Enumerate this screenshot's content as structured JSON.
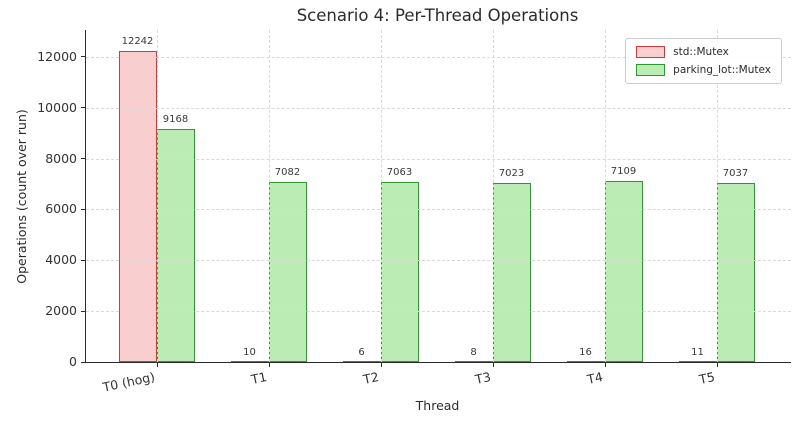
{
  "chart_data": {
    "type": "bar",
    "title": "Scenario 4: Per-Thread Operations",
    "xlabel": "Thread",
    "ylabel": "Operations (count over run)",
    "categories": [
      "T0 (hog)",
      "T1",
      "T2",
      "T3",
      "T4",
      "T5"
    ],
    "series": [
      {
        "name": "std::Mutex",
        "values": [
          12242,
          10,
          6,
          8,
          16,
          11
        ],
        "fill": "#f8cece",
        "edge": "#cc3c3c"
      },
      {
        "name": "parking_lot::Mutex",
        "values": [
          9168,
          7082,
          7063,
          7023,
          7109,
          7037
        ],
        "fill": "#baecb4",
        "edge": "#2e962e"
      }
    ],
    "yticks": [
      0,
      2000,
      4000,
      6000,
      8000,
      10000,
      12000
    ],
    "ylim": [
      0,
      13060
    ],
    "grid": true,
    "bar_value_labels": true,
    "legend_position": "upper right",
    "colors": {
      "grid": "#d9d9d9",
      "axis": "#2b2b2b",
      "tick_text": "#333333",
      "value_text": "#3a3a3a",
      "legend_border": "#cccccc",
      "background": "#ffffff"
    }
  }
}
